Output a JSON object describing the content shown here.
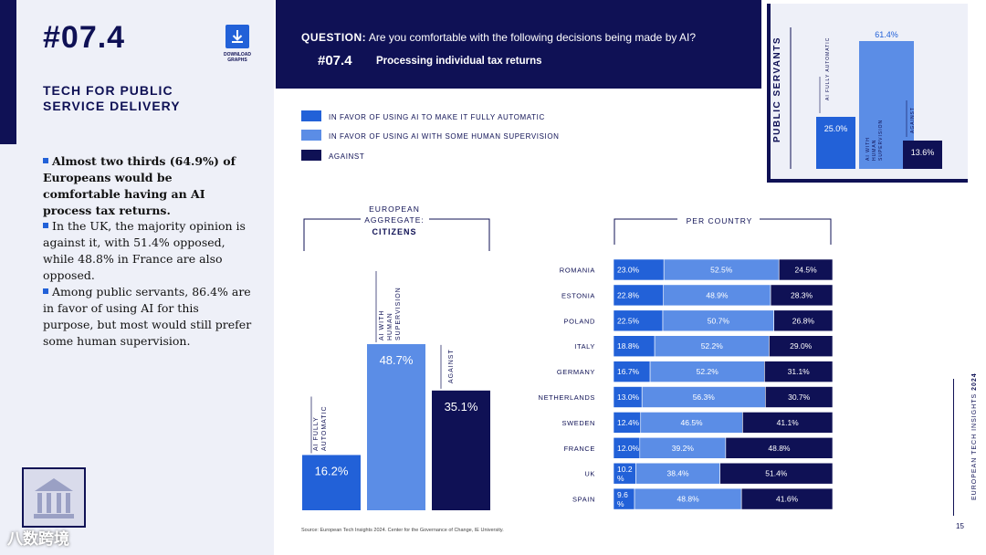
{
  "page": {
    "code": "#07.4",
    "download_label_1": "DOWNLOAD",
    "download_label_2": "GRAPHS",
    "section_title_1": "TECH FOR PUBLIC",
    "section_title_2": "SERVICE DELIVERY",
    "bullets": [
      "Almost two thirds (64.9%) of Europeans would be comfortable having an AI process tax returns.",
      "In the UK, the majority opinion is against it, with 51.4% opposed, while 48.8% in France are also opposed.",
      "Among public servants, 86.4% are in favor of using AI for this purpose, but most would still prefer some human supervision."
    ],
    "watermark": "八数跨境",
    "question_label": "QUESTION:",
    "question_text": "Are you comfortable with the following decisions being made by AI?",
    "sub_code": "#07.4",
    "sub_title": "Processing individual tax returns",
    "source": "Source: European Tech Insights 2024. Center for the Governance of Change, IE University.",
    "side_text_prefix": "EUROPEAN TECH INSIGHTS ",
    "side_text_year": "2024",
    "page_number": "15"
  },
  "colors": {
    "navy": "#0f1155",
    "blue": "#2261d8",
    "light_blue": "#5b8de6",
    "panel": "#eef0f8"
  },
  "legend": [
    {
      "label": "IN FAVOR OF USING AI TO MAKE IT FULLY AUTOMATIC",
      "color": "#2261d8"
    },
    {
      "label": "IN FAVOR OF USING AI WITH SOME HUMAN SUPERVISION",
      "color": "#5b8de6"
    },
    {
      "label": "AGAINST",
      "color": "#0f1155"
    }
  ],
  "chart_data": [
    {
      "type": "bar",
      "title": "PUBLIC SERVANTS",
      "categories": [
        "AI FULLY AUTOMATIC",
        "AI WITH HUMAN SUPERVISION",
        "AGAINST"
      ],
      "values": [
        25.0,
        61.4,
        13.6
      ],
      "labels": [
        "25.0%",
        "61.4%",
        "13.6%"
      ]
    },
    {
      "type": "bar",
      "title_1": "EUROPEAN",
      "title_2": "AGGREGATE:",
      "title_3": "CITIZENS",
      "categories": [
        "AI FULLY AUTOMATIC",
        "AI WITH HUMAN SUPERVISION",
        "AGAINST"
      ],
      "values": [
        16.2,
        48.7,
        35.1
      ],
      "labels": [
        "16.2%",
        "48.7%",
        "35.1%"
      ]
    },
    {
      "type": "bar",
      "orientation": "horizontal-stacked",
      "title": "PER COUNTRY",
      "categories": [
        "ROMANIA",
        "ESTONIA",
        "POLAND",
        "ITALY",
        "GERMANY",
        "NETHERLANDS",
        "SWEDEN",
        "FRANCE",
        "UK",
        "SPAIN"
      ],
      "series": [
        {
          "name": "IN FAVOR OF USING AI TO MAKE IT FULLY AUTOMATIC",
          "values": [
            23.0,
            22.8,
            22.5,
            18.8,
            16.7,
            13.0,
            12.4,
            12.0,
            10.2,
            9.6
          ],
          "labels": [
            "23.0%",
            "22.8%",
            "22.5%",
            "18.8%",
            "16.7%",
            "13.0%",
            "12.4%",
            "12.0%",
            "10.2 %",
            "9.6 %"
          ]
        },
        {
          "name": "IN FAVOR OF USING AI WITH SOME HUMAN SUPERVISION",
          "values": [
            52.5,
            48.9,
            50.7,
            52.2,
            52.2,
            56.3,
            46.5,
            39.2,
            38.4,
            48.8
          ],
          "labels": [
            "52.5%",
            "48.9%",
            "50.7%",
            "52.2%",
            "52.2%",
            "56.3%",
            "46.5%",
            "39.2%",
            "38.4%",
            "48.8%"
          ]
        },
        {
          "name": "AGAINST",
          "values": [
            24.5,
            28.3,
            26.8,
            29.0,
            31.1,
            30.7,
            41.1,
            48.8,
            51.4,
            41.6
          ],
          "labels": [
            "24.5%",
            "28.3%",
            "26.8%",
            "29.0%",
            "31.1%",
            "30.7%",
            "41.1%",
            "48.8%",
            "51.4%",
            "41.6%"
          ]
        }
      ]
    }
  ]
}
